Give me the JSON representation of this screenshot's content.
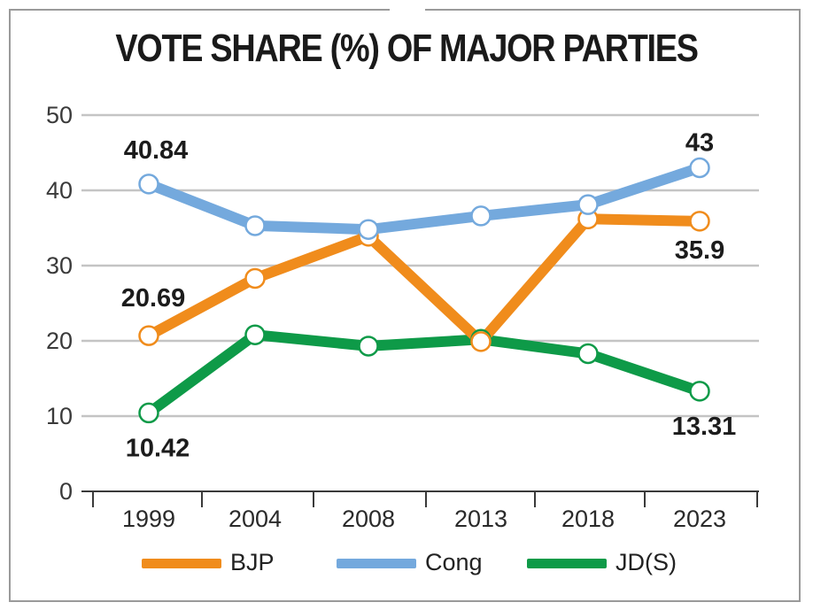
{
  "chart_data": {
    "type": "line",
    "title": "VOTE SHARE (%) OF MAJOR PARTIES",
    "categories": [
      "1999",
      "2004",
      "2008",
      "2013",
      "2018",
      "2023"
    ],
    "ylim": [
      0,
      50
    ],
    "yticks": [
      0,
      10,
      20,
      30,
      40,
      50
    ],
    "ytick_labels": [
      "0",
      "10",
      "20",
      "30",
      "40",
      "50"
    ],
    "grid": true,
    "legend_position": "bottom",
    "series": [
      {
        "name": "BJP",
        "color": "#f08c1c",
        "values": [
          20.69,
          28.3,
          33.9,
          19.9,
          36.2,
          35.9
        ]
      },
      {
        "name": "Cong",
        "color": "#74a9dd",
        "values": [
          40.84,
          35.3,
          34.8,
          36.6,
          38.1,
          43
        ]
      },
      {
        "name": "JD(S)",
        "color": "#0e9a48",
        "values": [
          10.42,
          20.8,
          19.3,
          20.2,
          18.3,
          13.31
        ]
      }
    ],
    "annotations": [
      {
        "series": "Cong",
        "category": "1999",
        "text": "40.84"
      },
      {
        "series": "Cong",
        "category": "2023",
        "text": "43"
      },
      {
        "series": "BJP",
        "category": "1999",
        "text": "20.69"
      },
      {
        "series": "BJP",
        "category": "2023",
        "text": "35.9"
      },
      {
        "series": "JD(S)",
        "category": "1999",
        "text": "10.42"
      },
      {
        "series": "JD(S)",
        "category": "2023",
        "text": "13.31"
      }
    ]
  }
}
